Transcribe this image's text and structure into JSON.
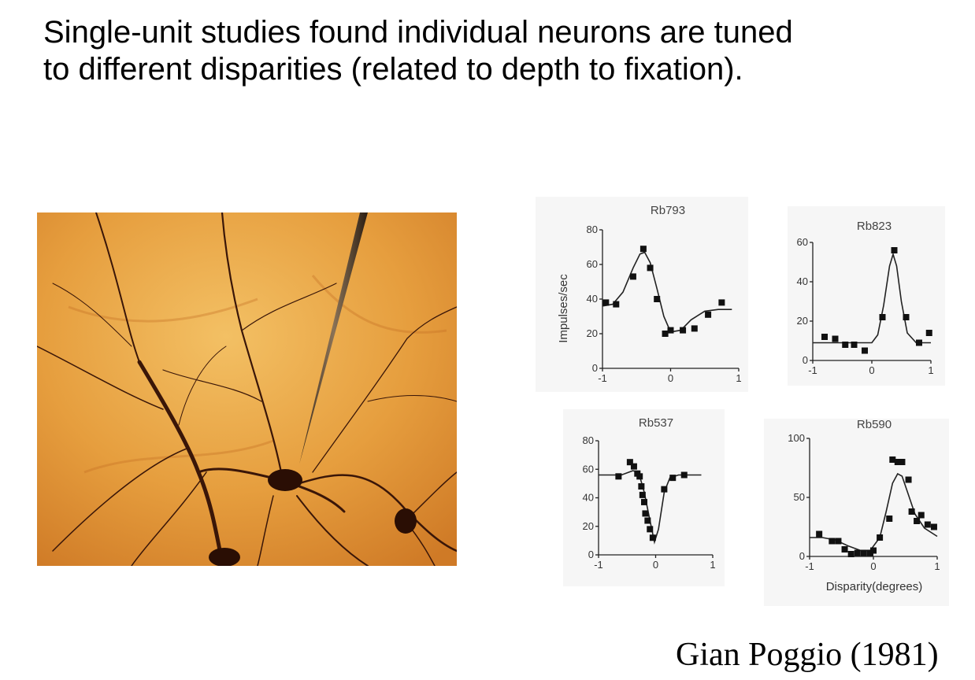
{
  "slide": {
    "title_line1": "Single-unit studies found individual neurons are tuned",
    "title_line2": "to different disparities (related to depth to fixation).",
    "citation": "Gian Poggio (1981)"
  },
  "photo": {
    "subject": "stained neuron with recording electrode",
    "background_color": "#e09a3c",
    "dendrite_color": "#3a1608"
  },
  "chart_data": [
    {
      "type": "scatter",
      "title": "Rb793",
      "xlabel": "",
      "ylabel": "Impulses/sec",
      "xlim": [
        -1,
        1
      ],
      "ylim": [
        0,
        80
      ],
      "xticks": [
        "-1",
        "0",
        "1"
      ],
      "yticks": [
        "0",
        "20",
        "40",
        "60",
        "80"
      ],
      "points": {
        "x": [
          -0.95,
          -0.8,
          -0.55,
          -0.4,
          -0.3,
          -0.2,
          -0.08,
          0.0,
          0.18,
          0.35,
          0.55,
          0.75
        ],
        "y": [
          38,
          37,
          53,
          69,
          58,
          40,
          20,
          22,
          22,
          23,
          31,
          38
        ]
      },
      "curve": {
        "x": [
          -1,
          -0.85,
          -0.7,
          -0.55,
          -0.45,
          -0.38,
          -0.3,
          -0.2,
          -0.1,
          0.0,
          0.15,
          0.3,
          0.5,
          0.7,
          0.9
        ],
        "y": [
          36,
          37,
          44,
          58,
          66,
          67,
          61,
          46,
          30,
          21,
          22,
          28,
          33,
          34,
          34
        ]
      }
    },
    {
      "type": "scatter",
      "title": "Rb823",
      "xlabel": "",
      "ylabel": "",
      "xlim": [
        -1,
        1
      ],
      "ylim": [
        0,
        60
      ],
      "xticks": [
        "-1",
        "0",
        "1"
      ],
      "yticks": [
        "0",
        "20",
        "40",
        "60"
      ],
      "points": {
        "x": [
          -0.8,
          -0.62,
          -0.45,
          -0.3,
          -0.12,
          0.18,
          0.38,
          0.58,
          0.8,
          0.97
        ],
        "y": [
          12,
          11,
          8,
          8,
          5,
          22,
          56,
          22,
          9,
          14
        ]
      },
      "curve": {
        "x": [
          -1,
          -0.8,
          -0.5,
          -0.2,
          0.0,
          0.1,
          0.2,
          0.3,
          0.36,
          0.42,
          0.5,
          0.6,
          0.75,
          0.9,
          1.0
        ],
        "y": [
          9,
          9,
          9,
          9,
          9,
          13,
          28,
          48,
          54,
          48,
          30,
          14,
          9,
          9,
          9
        ]
      }
    },
    {
      "type": "scatter",
      "title": "Rb537",
      "xlabel": "",
      "ylabel": "",
      "xlim": [
        -1,
        1
      ],
      "ylim": [
        0,
        80
      ],
      "xticks": [
        "-1",
        "0",
        "1"
      ],
      "yticks": [
        "0",
        "20",
        "40",
        "60",
        "80"
      ],
      "points": {
        "x": [
          -0.65,
          -0.45,
          -0.38,
          -0.32,
          -0.28,
          -0.25,
          -0.23,
          -0.2,
          -0.18,
          -0.14,
          -0.1,
          -0.05,
          0.15,
          0.3,
          0.5
        ],
        "y": [
          55,
          65,
          62,
          57,
          55,
          48,
          42,
          37,
          29,
          24,
          18,
          12,
          46,
          54,
          56
        ]
      },
      "curve": {
        "x": [
          -1,
          -0.6,
          -0.4,
          -0.3,
          -0.2,
          -0.1,
          -0.02,
          0.05,
          0.15,
          0.25,
          0.4,
          0.6,
          0.8
        ],
        "y": [
          56,
          56,
          59,
          58,
          44,
          24,
          9,
          18,
          44,
          54,
          56,
          56,
          56
        ]
      }
    },
    {
      "type": "scatter",
      "title": "Rb590",
      "xlabel": "Disparity(degrees)",
      "ylabel": "",
      "xlim": [
        -1,
        1
      ],
      "ylim": [
        0,
        100
      ],
      "xticks": [
        "-1",
        "0",
        "1"
      ],
      "yticks": [
        "0",
        "50",
        "100"
      ],
      "points": {
        "x": [
          -0.85,
          -0.65,
          -0.55,
          -0.45,
          -0.35,
          -0.25,
          -0.15,
          -0.05,
          0.0,
          0.1,
          0.25,
          0.3,
          0.38,
          0.45,
          0.55,
          0.6,
          0.68,
          0.75,
          0.85,
          0.95
        ],
        "y": [
          19,
          13,
          13,
          6,
          2,
          3,
          3,
          3,
          5,
          16,
          32,
          82,
          80,
          80,
          65,
          38,
          30,
          35,
          27,
          25
        ]
      },
      "curve": {
        "x": [
          -1,
          -0.8,
          -0.6,
          -0.4,
          -0.2,
          -0.05,
          0.1,
          0.2,
          0.3,
          0.38,
          0.45,
          0.55,
          0.65,
          0.8,
          1.0
        ],
        "y": [
          16,
          16,
          14,
          9,
          5,
          5,
          16,
          38,
          62,
          70,
          68,
          52,
          36,
          24,
          17
        ]
      }
    }
  ]
}
